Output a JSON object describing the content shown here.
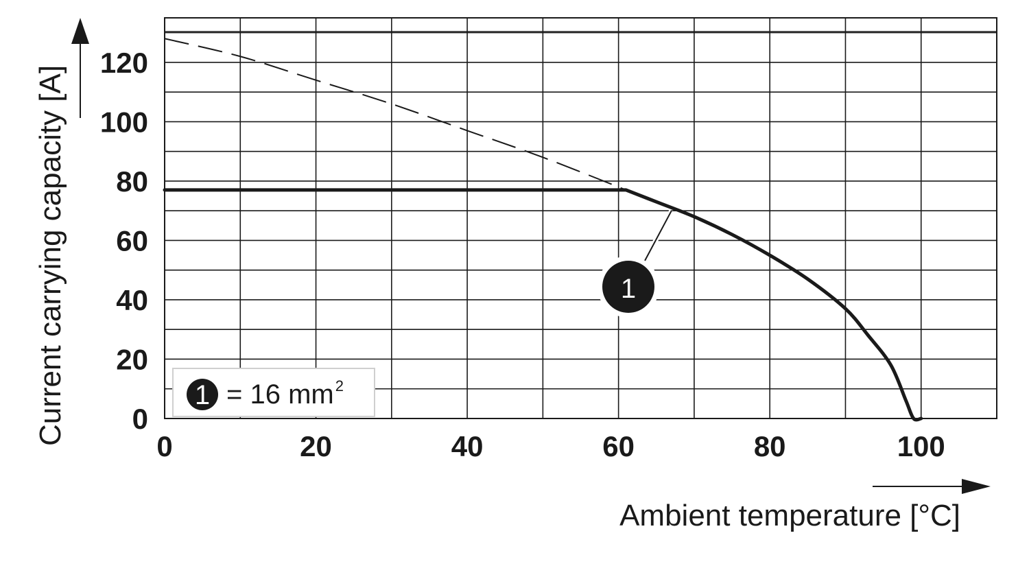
{
  "chart_data": {
    "type": "line",
    "xlabel": "Ambient temperature [°C]",
    "ylabel": "Current carrying capacity [A]",
    "xlim": [
      0,
      110
    ],
    "ylim": [
      0,
      135
    ],
    "x_ticks": [
      0,
      20,
      40,
      60,
      80,
      100
    ],
    "x_tick_labels": [
      "0",
      "20",
      "40",
      "60",
      "80",
      "100"
    ],
    "y_ticks": [
      0,
      20,
      40,
      60,
      80,
      100,
      120
    ],
    "y_tick_labels": [
      "0",
      "20",
      "40",
      "60",
      "80",
      "100",
      "120"
    ],
    "grid": true,
    "series": [
      {
        "style": "solid-thick",
        "marker_label": "1",
        "x": [
          0,
          61,
          65,
          70,
          75,
          80,
          85,
          90,
          93,
          96,
          98,
          99,
          100
        ],
        "y": [
          77,
          77,
          73,
          68,
          62,
          55,
          47,
          37,
          28,
          18,
          6,
          0,
          0
        ]
      },
      {
        "style": "dashed",
        "x": [
          0,
          10,
          20,
          30,
          40,
          50,
          61
        ],
        "y": [
          128,
          122,
          114,
          106,
          97,
          88,
          77
        ]
      }
    ],
    "annotations": [
      {
        "label": "1",
        "points_to": {
          "x": 67,
          "y": 70
        }
      }
    ],
    "legend": {
      "placement": "bottom-left",
      "marker": "1",
      "text": "= 16 mm",
      "superscript": "2"
    }
  }
}
